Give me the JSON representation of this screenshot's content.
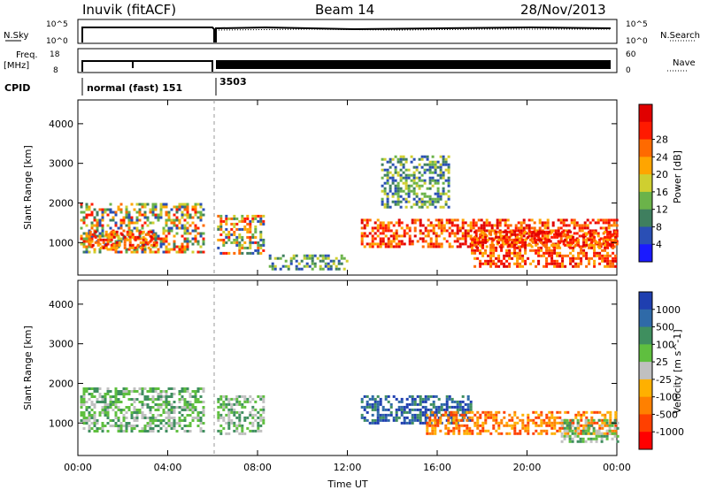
{
  "header": {
    "title": "Inuvik (fitACF)",
    "beam": "Beam 14",
    "date": "28/Nov/2013"
  },
  "status_panels": {
    "nsky_label": "N.Sky",
    "nsky_top": "10^5",
    "nsky_bottom": "10^0",
    "nsearch_label": "N.Search",
    "nsearch_top": "10^5",
    "nsearch_bottom": "10^0",
    "freq_label_1": "Freq.",
    "freq_label_2": "[MHz]",
    "freq_top": "18",
    "freq_bottom": "8",
    "nave_label": "Nave",
    "nave_top": "60",
    "nave_bottom": "0",
    "cpid_label": "CPID",
    "cpid_entries": [
      {
        "label": "normal (fast) 151",
        "start_hour": 0
      },
      {
        "label": "3503",
        "start_hour": 6.1
      }
    ]
  },
  "chart_data": [
    {
      "type": "heatmap",
      "panel": "power",
      "ylabel": "Slant Range [km]",
      "xlim": [
        0,
        24
      ],
      "ylim": [
        180,
        4600
      ],
      "ytick_values": [
        1000,
        2000,
        3000,
        4000
      ],
      "xtick_values": [
        0,
        4,
        8,
        12,
        16,
        20,
        24
      ],
      "colorbar": {
        "label": "Power [dB]",
        "ticks": [
          "4",
          "8",
          "12",
          "16",
          "20",
          "24",
          "28"
        ],
        "colors": [
          "#1a1aff",
          "#2a4fb5",
          "#3f7f5f",
          "#6bb34a",
          "#cfcf30",
          "#ffa500",
          "#ff6a00",
          "#ff1a00",
          "#e00000"
        ]
      },
      "echo_regions": [
        {
          "t0": 0.1,
          "t1": 5.6,
          "r0": 780,
          "r1": 2000,
          "level": "mid"
        },
        {
          "t0": 0.5,
          "t1": 3.5,
          "r0": 850,
          "r1": 1300,
          "level": "high"
        },
        {
          "t0": 6.2,
          "t1": 8.3,
          "r0": 700,
          "r1": 1700,
          "level": "mid"
        },
        {
          "t0": 12.6,
          "t1": 24.0,
          "r0": 900,
          "r1": 1600,
          "level": "high"
        },
        {
          "t0": 17.5,
          "t1": 24.0,
          "r0": 400,
          "r1": 1300,
          "level": "high"
        },
        {
          "t0": 13.5,
          "t1": 16.5,
          "r0": 1900,
          "r1": 3200,
          "level": "low"
        },
        {
          "t0": 8.5,
          "t1": 12.0,
          "r0": 300,
          "r1": 700,
          "level": "low"
        }
      ]
    },
    {
      "type": "heatmap",
      "panel": "velocity",
      "ylabel": "Slant Range [km]",
      "xlabel": "Time UT",
      "xlim": [
        0,
        24
      ],
      "ylim": [
        180,
        4600
      ],
      "ytick_values": [
        1000,
        2000,
        3000,
        4000
      ],
      "xtick_values": [
        0,
        4,
        8,
        12,
        16,
        20,
        24
      ],
      "xtick_labels": [
        "00:00",
        "04:00",
        "08:00",
        "12:00",
        "16:00",
        "20:00",
        "00:00"
      ],
      "colorbar": {
        "label": "Velocity [m s^-1]",
        "ticks": [
          "1000",
          "500",
          "100",
          "25",
          "-25",
          "-100",
          "-500",
          "-1000"
        ],
        "colors": [
          "#1f3fb0",
          "#2f6aa8",
          "#3f8f5f",
          "#5fbf3f",
          "#c0c0c0",
          "#ffb000",
          "#ff8000",
          "#ff4000",
          "#ff0000"
        ]
      },
      "echo_regions": [
        {
          "t0": 0.1,
          "t1": 5.6,
          "r0": 800,
          "r1": 1900,
          "level": "green"
        },
        {
          "t0": 6.2,
          "t1": 8.3,
          "r0": 700,
          "r1": 1700,
          "level": "green"
        },
        {
          "t0": 12.6,
          "t1": 17.5,
          "r0": 1000,
          "r1": 1700,
          "level": "blue"
        },
        {
          "t0": 15.5,
          "t1": 24.0,
          "r0": 700,
          "r1": 1300,
          "level": "orange"
        },
        {
          "t0": 21.5,
          "t1": 24.0,
          "r0": 500,
          "r1": 1100,
          "level": "green"
        }
      ]
    }
  ]
}
